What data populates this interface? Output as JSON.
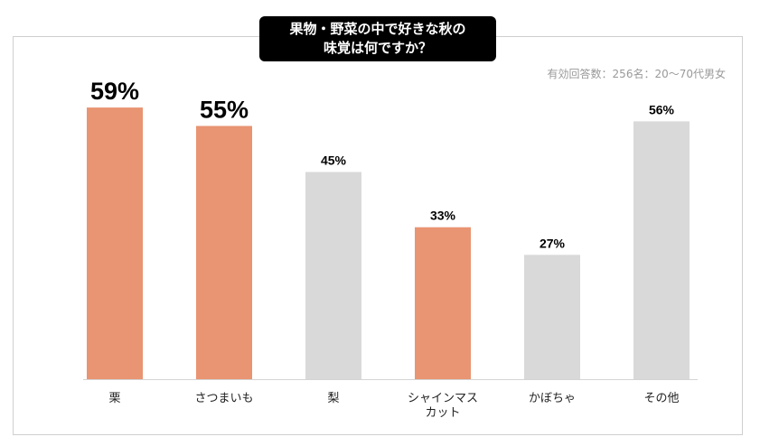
{
  "chart_data": {
    "type": "bar",
    "title_lines": [
      "果物・野菜の中で好きな秋の",
      "味覚は何ですか？"
    ],
    "subtitle": "有効回答数：256名：20〜70代男女",
    "categories": [
      {
        "lines": [
          "栗"
        ]
      },
      {
        "lines": [
          "さつまいも"
        ]
      },
      {
        "lines": [
          "梨"
        ]
      },
      {
        "lines": [
          "シャインマス",
          "カット"
        ]
      },
      {
        "lines": [
          "かぼちゃ"
        ]
      },
      {
        "lines": [
          "その他"
        ]
      }
    ],
    "values": [
      59,
      55,
      45,
      33,
      27,
      56
    ],
    "value_labels": [
      "59%",
      "55%",
      "45%",
      "33%",
      "27%",
      "56%"
    ],
    "highlight": [
      true,
      true,
      false,
      true,
      false,
      false
    ],
    "emphasis": [
      true,
      true,
      false,
      false,
      false,
      false
    ],
    "ylim": [
      0,
      100
    ],
    "colors": {
      "highlight": "#e99472",
      "normal": "#d9d9d9",
      "baseline": "#d4d4d4"
    }
  }
}
